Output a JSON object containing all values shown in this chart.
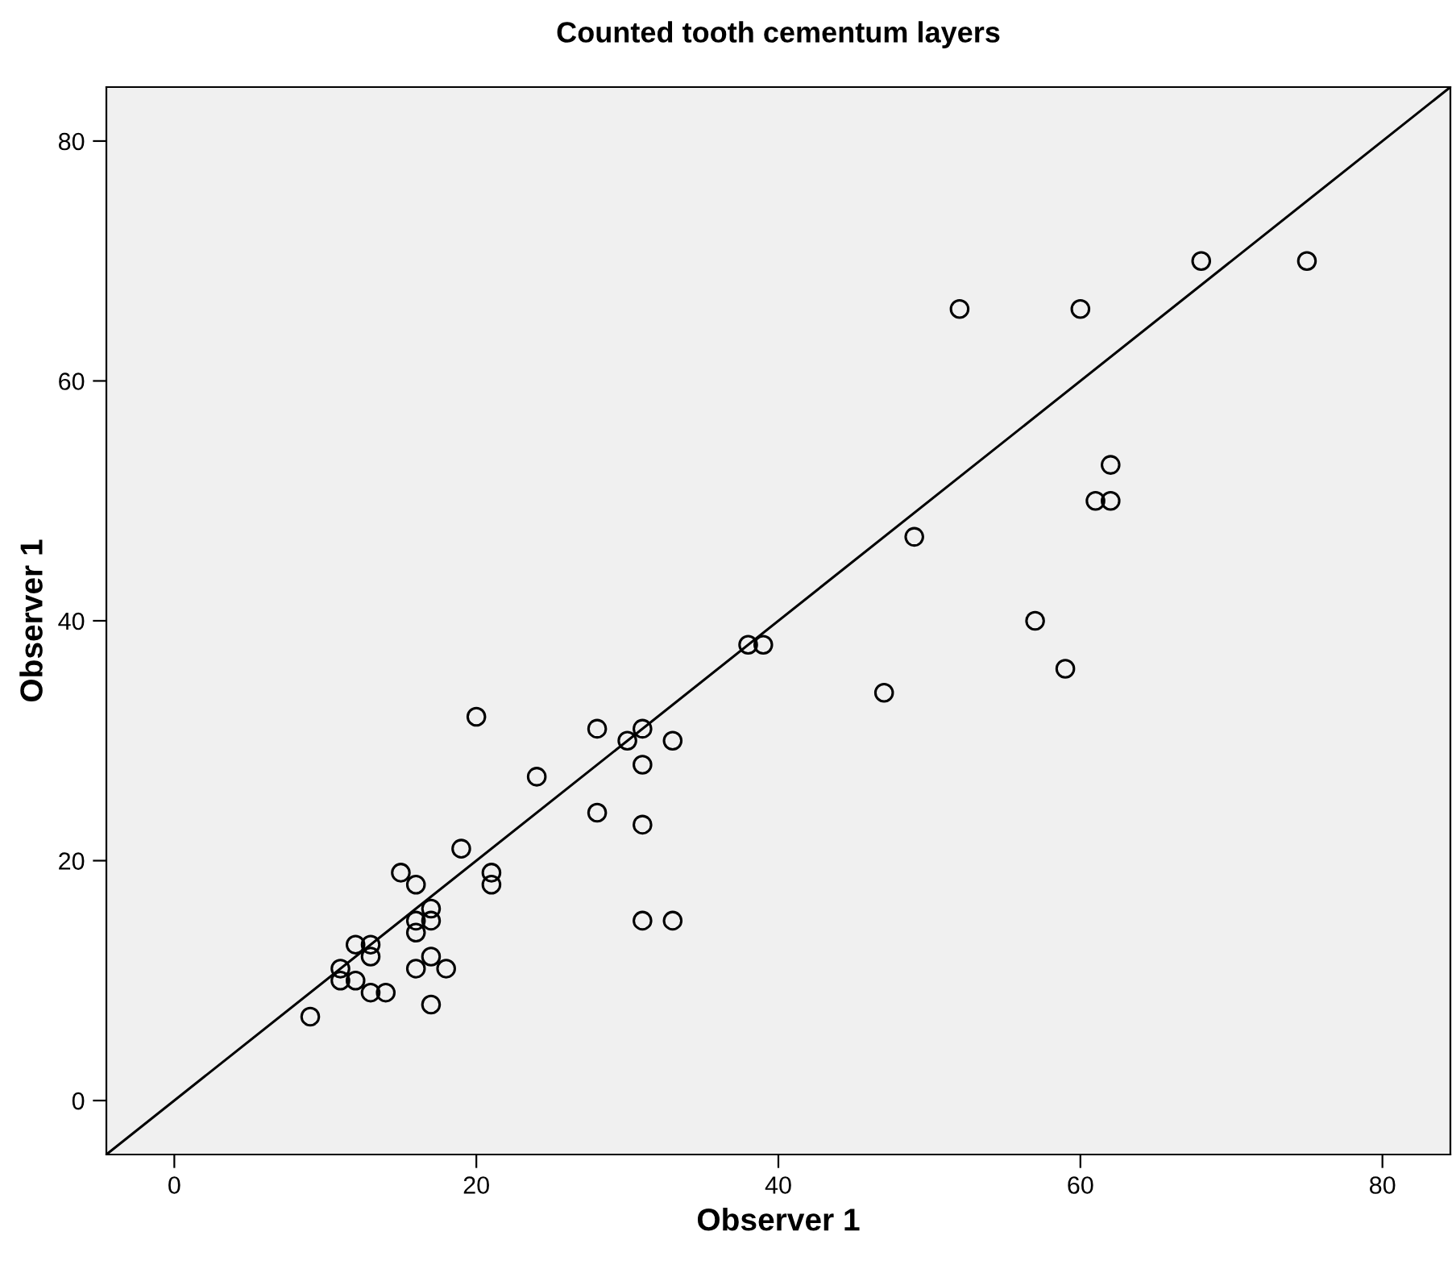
{
  "chart_data": {
    "type": "scatter",
    "title": "Counted tooth cementum layers",
    "xlabel": "Observer 1",
    "ylabel": "Observer 1",
    "xlim": [
      -4.5,
      84.5
    ],
    "ylim": [
      -4.5,
      84.5
    ],
    "xticks": [
      0,
      20,
      40,
      60,
      80
    ],
    "yticks": [
      0,
      20,
      40,
      60,
      80
    ],
    "grid": false,
    "marker": "circle",
    "series": [
      {
        "color": "#000000",
        "x": [
          75,
          68,
          52,
          60,
          62,
          61,
          62,
          49,
          57,
          38,
          39,
          59,
          47,
          20,
          28,
          31,
          30,
          33,
          31,
          24,
          28,
          31,
          19,
          15,
          21,
          21,
          16,
          17,
          17,
          16,
          16,
          31,
          33,
          12,
          13,
          13,
          17,
          11,
          16,
          18,
          11,
          12,
          13,
          14,
          17,
          9
        ],
        "values": [
          70,
          70,
          66,
          66,
          53,
          50,
          50,
          47,
          40,
          38,
          38,
          36,
          34,
          32,
          31,
          31,
          30,
          30,
          28,
          27,
          24,
          23,
          21,
          19,
          19,
          18,
          18,
          16,
          15,
          15,
          14,
          15,
          15,
          13,
          13,
          12,
          12,
          11,
          11,
          11,
          10,
          10,
          9,
          9,
          8,
          7
        ]
      },
      {
        "type": "line",
        "color": "#000000",
        "x": [
          -4.5,
          84.5
        ],
        "values": [
          -4.5,
          84.5
        ],
        "line_style": "solid",
        "marker": "none"
      }
    ]
  }
}
